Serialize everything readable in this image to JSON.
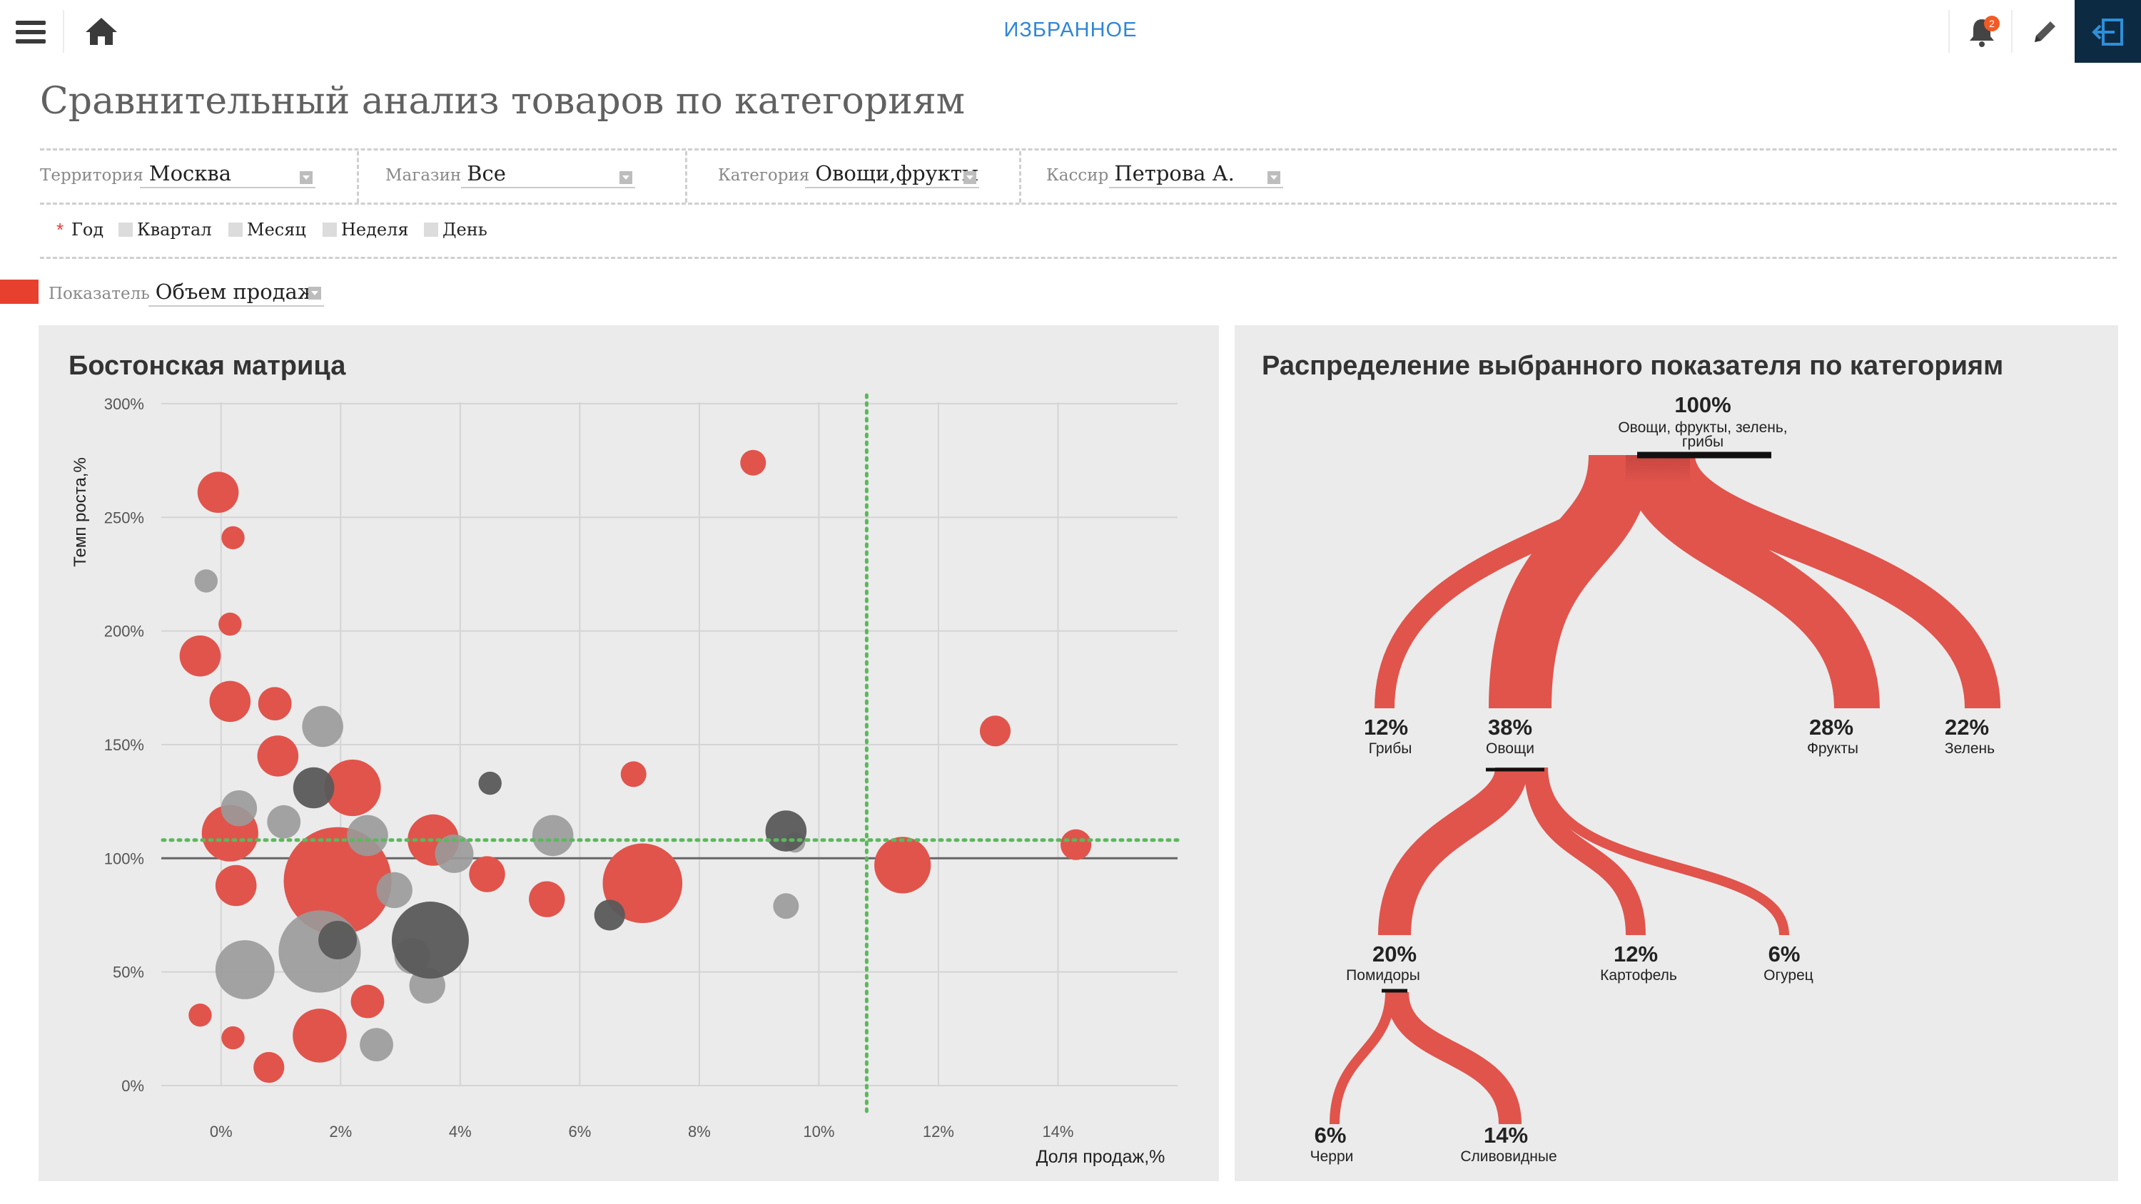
{
  "topbar": {
    "title": "ИЗБРАННОЕ",
    "notification_count": "2",
    "icons": [
      "menu-icon",
      "home-icon",
      "bell-icon",
      "pencil-icon",
      "exit-icon"
    ]
  },
  "page": {
    "title": "Сравнительный анализ товаров по категориям"
  },
  "filters": [
    {
      "label": "Территория",
      "value": "Москва"
    },
    {
      "label": "Магазин",
      "value": "Все"
    },
    {
      "label": "Категория",
      "value": "Овощи,фрукты"
    },
    {
      "label": "Кассир",
      "value": "Петрова А."
    }
  ],
  "periods": [
    {
      "label": "Год",
      "selected": true
    },
    {
      "label": "Квартал",
      "selected": false
    },
    {
      "label": "Месяц",
      "selected": false
    },
    {
      "label": "Неделя",
      "selected": false
    },
    {
      "label": "День",
      "selected": false
    }
  ],
  "indicator": {
    "label": "Показатель",
    "value": "Объем продаж"
  },
  "boston": {
    "title": "Бостонская матрица",
    "ylabel": "Темп роста,%",
    "xlabel": "Доля продаж,%"
  },
  "tree": {
    "title": "Распределение выбранного показателя по категориям",
    "root": {
      "pct": "100%",
      "label_line1": "Овощи, фрукты, зелень,",
      "label_line2": "грибы"
    },
    "level1": [
      {
        "pct": "12%",
        "label": "Грибы"
      },
      {
        "pct": "38%",
        "label": "Овощи"
      },
      {
        "pct": "28%",
        "label": "Фрукты"
      },
      {
        "pct": "22%",
        "label": "Зелень"
      }
    ],
    "level2": [
      {
        "pct": "20%",
        "label": "Помидоры"
      },
      {
        "pct": "12%",
        "label": "Картофель"
      },
      {
        "pct": "6%",
        "label": "Огурец"
      }
    ],
    "level3": [
      {
        "pct": "6%",
        "label": "Черри"
      },
      {
        "pct": "14%",
        "label": "Сливовидные"
      }
    ]
  },
  "colors": {
    "accent": "#2f86d6",
    "red": "#e0544c",
    "gray": "#9a9a9a",
    "dark": "#5a5a5a",
    "ref_line": "#5cb85c"
  },
  "chart_data": {
    "type": "scatter",
    "title": "Бостонская матрица",
    "xlabel": "Доля продаж,%",
    "ylabel": "Темп роста,%",
    "xlim": [
      -1,
      16
    ],
    "ylim": [
      0,
      300
    ],
    "x_ticks": [
      0,
      2,
      4,
      6,
      8,
      10,
      12,
      14
    ],
    "x_tick_labels": [
      "0%",
      "2%",
      "4%",
      "6%",
      "8%",
      "10%",
      "12%",
      "14%"
    ],
    "y_ticks": [
      0,
      50,
      100,
      150,
      200,
      250,
      300
    ],
    "y_tick_labels": [
      "0%",
      "50%",
      "100%",
      "150%",
      "200%",
      "250%",
      "300%"
    ],
    "grid": true,
    "reference_lines": {
      "x": 10.8,
      "y": 108,
      "baseline_y": 100
    },
    "series": [
      {
        "color": "red",
        "points": [
          {
            "x": -0.05,
            "y": 261,
            "r": 1.6
          },
          {
            "x": 0.2,
            "y": 241,
            "r": 0.9
          },
          {
            "x": 0.15,
            "y": 203,
            "r": 0.9
          },
          {
            "x": -0.35,
            "y": 189,
            "r": 1.6
          },
          {
            "x": 0.15,
            "y": 169,
            "r": 1.6
          },
          {
            "x": 0.9,
            "y": 168,
            "r": 1.3
          },
          {
            "x": 0.95,
            "y": 145,
            "r": 1.6
          },
          {
            "x": 2.2,
            "y": 131,
            "r": 2.2
          },
          {
            "x": 0.15,
            "y": 111,
            "r": 2.2
          },
          {
            "x": 0.25,
            "y": 88,
            "r": 1.6
          },
          {
            "x": 1.95,
            "y": 90,
            "r": 4.2
          },
          {
            "x": 3.55,
            "y": 108,
            "r": 2.0
          },
          {
            "x": 4.45,
            "y": 93,
            "r": 1.4
          },
          {
            "x": 5.45,
            "y": 82,
            "r": 1.4
          },
          {
            "x": 7.05,
            "y": 89,
            "r": 3.1
          },
          {
            "x": 6.9,
            "y": 137,
            "r": 1.0
          },
          {
            "x": 8.9,
            "y": 274,
            "r": 1.0
          },
          {
            "x": 11.4,
            "y": 97,
            "r": 2.2
          },
          {
            "x": 12.95,
            "y": 156,
            "r": 1.2
          },
          {
            "x": 14.3,
            "y": 106,
            "r": 1.2
          },
          {
            "x": 2.45,
            "y": 37,
            "r": 1.3
          },
          {
            "x": 1.65,
            "y": 22,
            "r": 2.1
          },
          {
            "x": 0.8,
            "y": 8,
            "r": 1.2
          },
          {
            "x": 0.2,
            "y": 21,
            "r": 0.9
          },
          {
            "x": -0.35,
            "y": 31,
            "r": 0.9
          }
        ]
      },
      {
        "color": "gray",
        "points": [
          {
            "x": -0.25,
            "y": 222,
            "r": 0.9
          },
          {
            "x": 1.7,
            "y": 158,
            "r": 1.6
          },
          {
            "x": 0.3,
            "y": 122,
            "r": 1.4
          },
          {
            "x": 1.05,
            "y": 116,
            "r": 1.3
          },
          {
            "x": 2.45,
            "y": 110,
            "r": 1.6
          },
          {
            "x": 3.9,
            "y": 102,
            "r": 1.5
          },
          {
            "x": 2.9,
            "y": 86,
            "r": 1.4
          },
          {
            "x": 0.4,
            "y": 51,
            "r": 2.3
          },
          {
            "x": 1.65,
            "y": 59,
            "r": 3.2
          },
          {
            "x": 3.2,
            "y": 57,
            "r": 1.4
          },
          {
            "x": 3.45,
            "y": 44,
            "r": 1.4
          },
          {
            "x": 2.6,
            "y": 18,
            "r": 1.3
          },
          {
            "x": 5.55,
            "y": 110,
            "r": 1.6
          },
          {
            "x": 9.6,
            "y": 107,
            "r": 0.8
          },
          {
            "x": 9.45,
            "y": 79,
            "r": 1.0
          }
        ]
      },
      {
        "color": "dark",
        "points": [
          {
            "x": 1.55,
            "y": 131,
            "r": 1.6
          },
          {
            "x": 4.5,
            "y": 133,
            "r": 0.9
          },
          {
            "x": 3.5,
            "y": 64,
            "r": 3.0
          },
          {
            "x": 1.95,
            "y": 64,
            "r": 1.5
          },
          {
            "x": 6.5,
            "y": 75,
            "r": 1.2
          },
          {
            "x": 9.45,
            "y": 112,
            "r": 1.6
          }
        ]
      }
    ]
  }
}
